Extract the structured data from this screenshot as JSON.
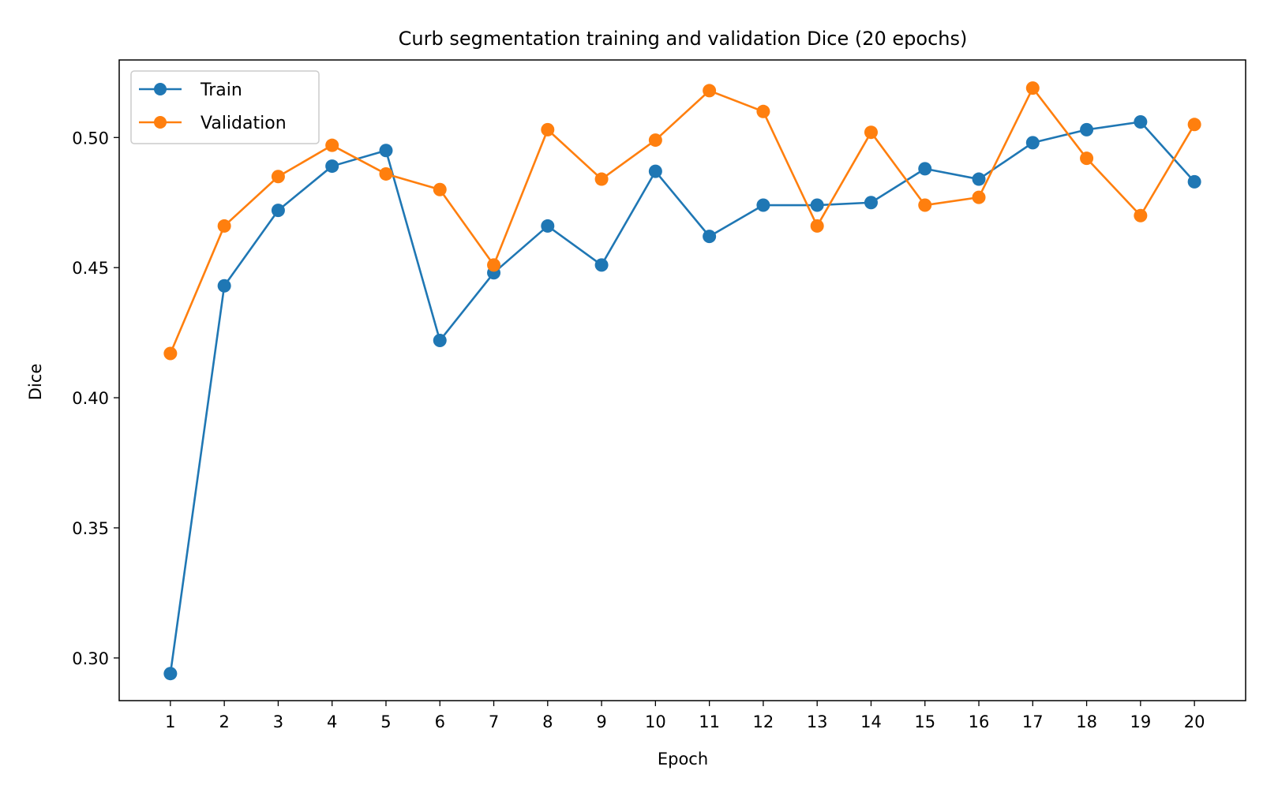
{
  "chart_data": {
    "type": "line",
    "title": "Curb segmentation training and validation Dice (20 epochs)",
    "xlabel": "Epoch",
    "ylabel": "Dice",
    "x": [
      1,
      2,
      3,
      4,
      5,
      6,
      7,
      8,
      9,
      10,
      11,
      12,
      13,
      14,
      15,
      16,
      17,
      18,
      19,
      20
    ],
    "xlim": [
      0.05,
      20.95
    ],
    "ylim": [
      0.2836,
      0.5298
    ],
    "yticks": [
      0.3,
      0.35,
      0.4,
      0.45,
      0.5
    ],
    "ytick_labels": [
      "0.30",
      "0.35",
      "0.40",
      "0.45",
      "0.50"
    ],
    "xtick_labels": [
      "1",
      "2",
      "3",
      "4",
      "5",
      "6",
      "7",
      "8",
      "9",
      "10",
      "11",
      "12",
      "13",
      "14",
      "15",
      "16",
      "17",
      "18",
      "19",
      "20"
    ],
    "grid": false,
    "legend_position": "top-left",
    "series": [
      {
        "name": "Train",
        "color": "#1f77b4",
        "values": [
          0.294,
          0.443,
          0.472,
          0.489,
          0.495,
          0.422,
          0.448,
          0.466,
          0.451,
          0.487,
          0.462,
          0.474,
          0.474,
          0.475,
          0.488,
          0.484,
          0.498,
          0.503,
          0.506,
          0.483
        ]
      },
      {
        "name": "Validation",
        "color": "#ff7f0e",
        "values": [
          0.417,
          0.466,
          0.485,
          0.497,
          0.486,
          0.48,
          0.451,
          0.503,
          0.484,
          0.499,
          0.518,
          0.51,
          0.466,
          0.502,
          0.474,
          0.477,
          0.519,
          0.492,
          0.47,
          0.505
        ]
      }
    ]
  }
}
